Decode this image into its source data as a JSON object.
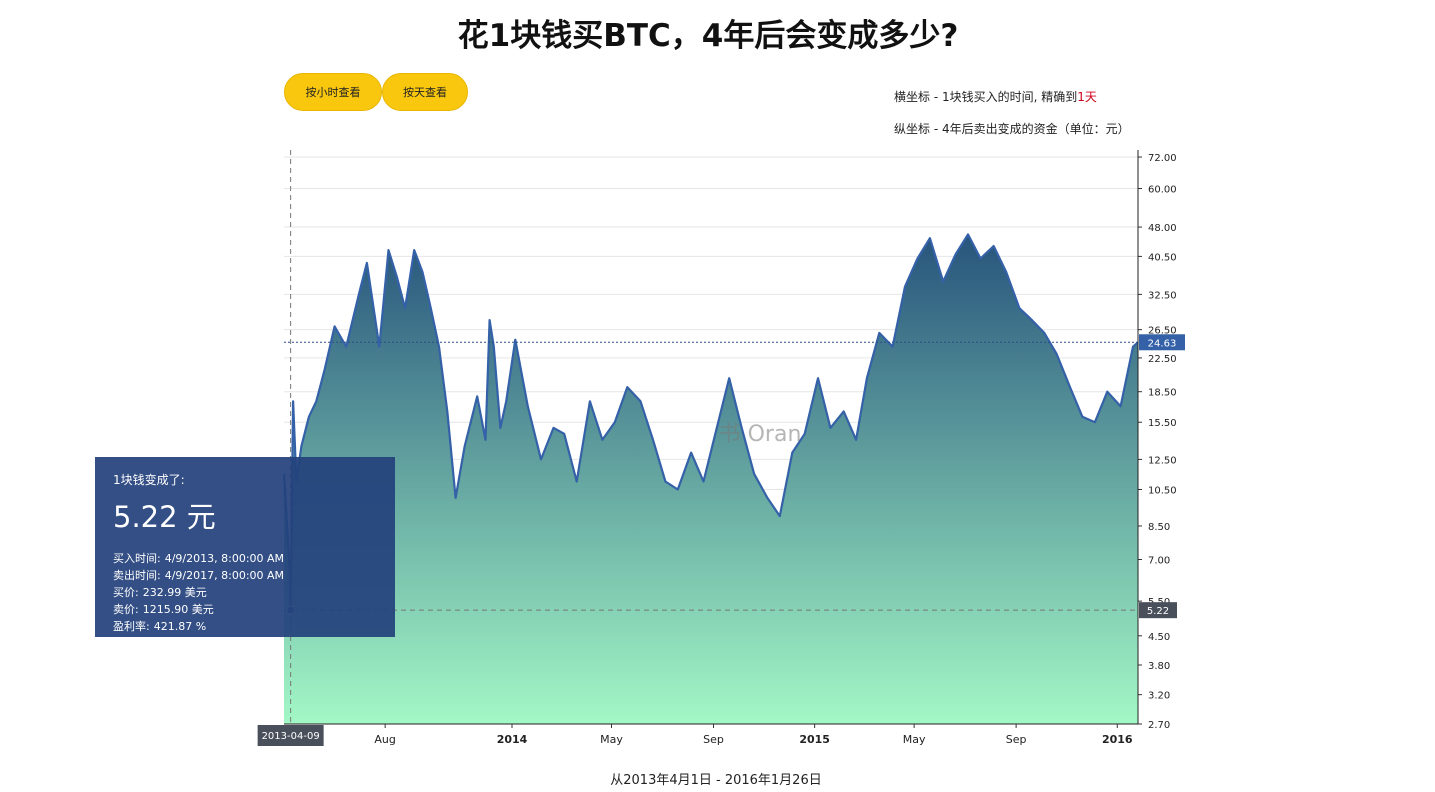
{
  "title": "花1块钱买BTC，4年后会变成多少?",
  "buttons": {
    "hour": "按小时查看",
    "day": "按天查看"
  },
  "legend": {
    "x_text": "横坐标 - 1块钱买入的时间, 精确到",
    "x_highlight": "1天",
    "y_text": "纵坐标 - 4年后卖出变成的资金（单位：元）"
  },
  "colors": {
    "accent_yellow": "#f9c80e",
    "line": "#3461a7",
    "area_top": "#27547c",
    "area_bottom": "#a3f8c6",
    "tooltip_bg": "#23427c",
    "highlight_red": "#d0021b"
  },
  "tooltip": {
    "header": "1块钱变成了:",
    "value": "5.22 元",
    "rows": [
      {
        "label": "买入时间:",
        "value": "4/9/2013, 8:00:00 AM"
      },
      {
        "label": "卖出时间:",
        "value": "4/9/2017, 8:00:00 AM"
      },
      {
        "label": "买价:",
        "value": "232.99 美元"
      },
      {
        "label": "卖价:",
        "value": "1215.90 美元"
      },
      {
        "label": "盈利率:",
        "value": "421.87 %"
      }
    ]
  },
  "footer": "从2013年4月1日 - 2016年1月26日",
  "watermark": "书 Oran",
  "chart_data": {
    "type": "area",
    "x_start": "2013-04-01",
    "x_end": "2016-01-26",
    "scale_y": "log",
    "ylim": [
      2.7,
      75
    ],
    "y_ticks": [
      "72.00",
      "60.00",
      "48.00",
      "40.50",
      "32.50",
      "26.50",
      "22.50",
      "18.50",
      "15.50",
      "12.50",
      "10.50",
      "8.50",
      "7.00",
      "5.50",
      "4.50",
      "3.80",
      "3.20",
      "2.70"
    ],
    "x_ticks": [
      {
        "date": "2013-08-01",
        "label": "Aug",
        "bold": false
      },
      {
        "date": "2014-01-01",
        "label": "2014",
        "bold": true
      },
      {
        "date": "2014-05-01",
        "label": "May",
        "bold": false
      },
      {
        "date": "2014-09-01",
        "label": "Sep",
        "bold": false
      },
      {
        "date": "2015-01-01",
        "label": "2015",
        "bold": true
      },
      {
        "date": "2015-05-01",
        "label": "May",
        "bold": false
      },
      {
        "date": "2015-09-01",
        "label": "Sep",
        "bold": false
      },
      {
        "date": "2016-01-01",
        "label": "2016",
        "bold": true
      }
    ],
    "series": [
      {
        "x": [
          "2013-04-01",
          "2013-04-04",
          "2013-04-08",
          "2013-04-09",
          "2013-04-10",
          "2013-04-12",
          "2013-04-16",
          "2013-04-22",
          "2013-05-01",
          "2013-05-10",
          "2013-05-20",
          "2013-06-01",
          "2013-06-15",
          "2013-07-01",
          "2013-07-10",
          "2013-07-25",
          "2013-08-05",
          "2013-08-15",
          "2013-08-25",
          "2013-09-05",
          "2013-09-15",
          "2013-09-25",
          "2013-10-05",
          "2013-10-15",
          "2013-10-25",
          "2013-11-05",
          "2013-11-20",
          "2013-11-30",
          "2013-12-05",
          "2013-12-10",
          "2013-12-18",
          "2013-12-25",
          "2014-01-05",
          "2014-01-20",
          "2014-02-05",
          "2014-02-20",
          "2014-03-05",
          "2014-03-20",
          "2014-04-05",
          "2014-04-20",
          "2014-05-05",
          "2014-05-20",
          "2014-06-05",
          "2014-06-20",
          "2014-07-05",
          "2014-07-20",
          "2014-08-05",
          "2014-08-20",
          "2014-09-05",
          "2014-09-20",
          "2014-10-05",
          "2014-10-20",
          "2014-11-05",
          "2014-11-20",
          "2014-12-05",
          "2014-12-20",
          "2015-01-05",
          "2015-01-20",
          "2015-02-05",
          "2015-02-20",
          "2015-03-05",
          "2015-03-20",
          "2015-04-05",
          "2015-04-20",
          "2015-05-05",
          "2015-05-20",
          "2015-06-05",
          "2015-06-20",
          "2015-07-05",
          "2015-07-20",
          "2015-08-05",
          "2015-08-20",
          "2015-09-05",
          "2015-09-20",
          "2015-10-05",
          "2015-10-20",
          "2015-11-05",
          "2015-11-20",
          "2015-12-05",
          "2015-12-20",
          "2016-01-05",
          "2016-01-20",
          "2016-01-26"
        ],
        "values": [
          11.5,
          9.0,
          6.5,
          5.22,
          7.8,
          17.5,
          11.0,
          13.5,
          16.0,
          17.5,
          21.0,
          27.0,
          24.0,
          33.0,
          39.0,
          24.0,
          42.0,
          36.0,
          30.0,
          42.0,
          37.0,
          30.0,
          24.0,
          16.5,
          10.0,
          13.5,
          18.0,
          14.0,
          28.0,
          24.0,
          15.0,
          17.5,
          25.0,
          17.0,
          12.5,
          15.0,
          14.5,
          11.0,
          17.5,
          14.0,
          15.5,
          19.0,
          17.5,
          14.0,
          11.0,
          10.5,
          13.0,
          11.0,
          15.0,
          20.0,
          15.0,
          11.5,
          10.0,
          9.0,
          13.0,
          14.5,
          20.0,
          15.0,
          16.5,
          14.0,
          20.0,
          26.0,
          24.0,
          34.0,
          40.0,
          45.0,
          35.0,
          41.0,
          46.0,
          40.0,
          43.0,
          37.0,
          30.0,
          28.0,
          26.0,
          23.0,
          19.0,
          16.0,
          15.5,
          18.5,
          17.0,
          24.0,
          24.63
        ]
      }
    ],
    "current_value": 24.63,
    "hover": {
      "date": "2013-04-09",
      "date_label": "2013-04-09",
      "value": 5.22,
      "value_label": "5.22"
    },
    "current_label": "24.63"
  }
}
